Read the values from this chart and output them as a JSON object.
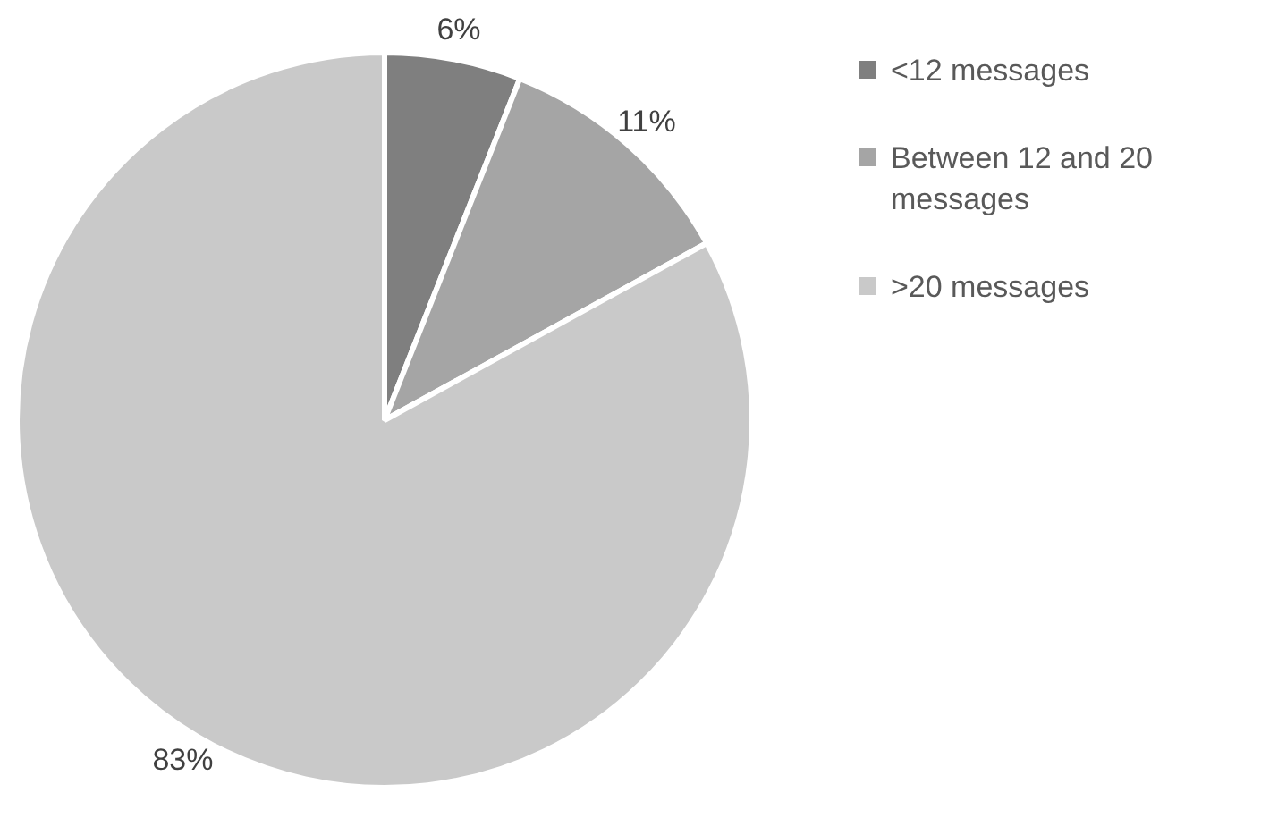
{
  "chart_data": {
    "type": "pie",
    "categories": [
      "<12 messages",
      "Between 12 and 20 messages",
      ">20 messages"
    ],
    "values": [
      6,
      11,
      83
    ],
    "colors": [
      "#7f7f7f",
      "#a5a5a5",
      "#c9c9c9"
    ],
    "value_labels": [
      "6%",
      "11%",
      "83%"
    ],
    "legend": "right"
  }
}
